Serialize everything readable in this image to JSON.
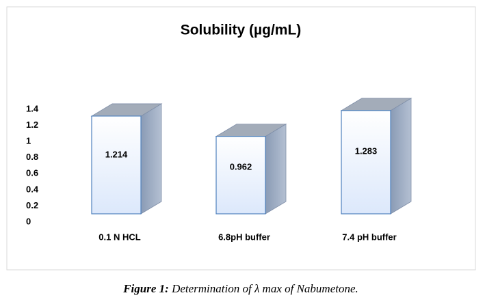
{
  "chart_data": {
    "type": "bar3d",
    "title": "Solubility  (µg/mL)",
    "categories": [
      "0.1 N HCL",
      "6.8pH buffer",
      "7.4 pH buffer"
    ],
    "values": [
      1.214,
      0.962,
      1.283
    ],
    "color": "#dce8fb",
    "ylim": [
      0,
      1.4
    ],
    "yticks": [
      0,
      0.2,
      0.4,
      0.6,
      0.8,
      1,
      1.2,
      1.4
    ]
  },
  "caption": {
    "label": "Figure 1:",
    "text": "Determination of λ max of Nabumetone."
  }
}
